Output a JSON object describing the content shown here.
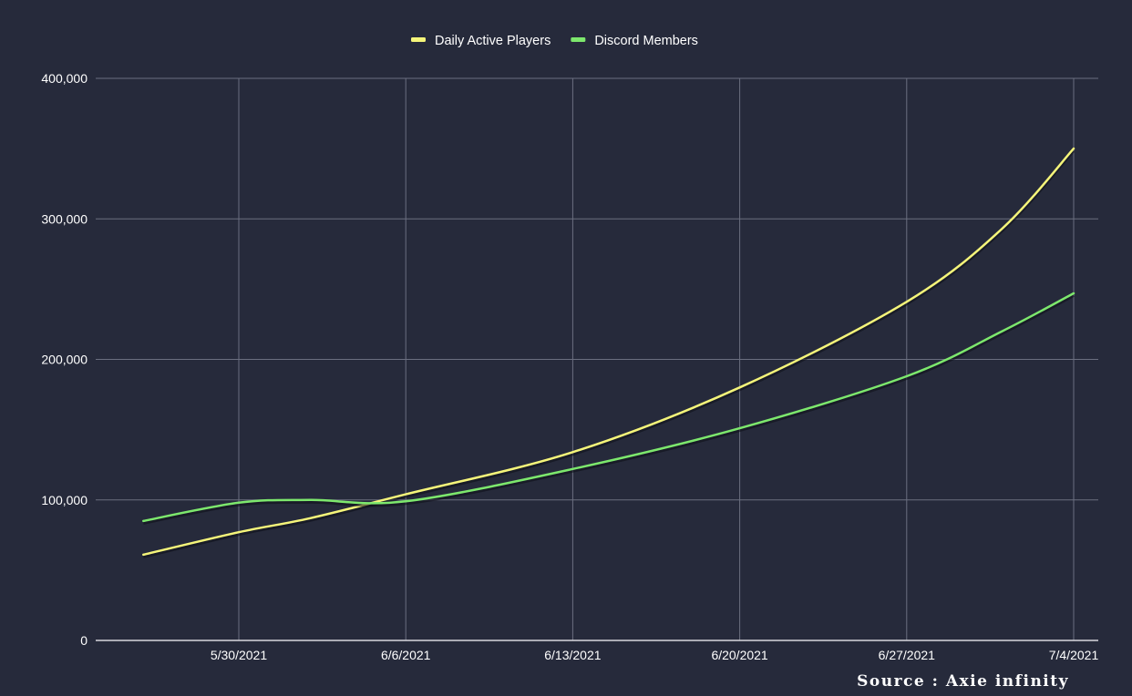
{
  "chart_data": {
    "type": "line",
    "title": "",
    "xlabel": "",
    "ylabel": "",
    "x": [
      "5/26/2021",
      "5/30/2021",
      "6/2/2021",
      "6/6/2021",
      "6/13/2021",
      "6/20/2021",
      "6/27/2021",
      "7/1/2021",
      "7/4/2021"
    ],
    "x_tick_labels": [
      "5/30/2021",
      "6/6/2021",
      "6/13/2021",
      "6/20/2021",
      "6/27/2021",
      "7/4/2021"
    ],
    "y_tick_labels": [
      "0",
      "100,000",
      "200,000",
      "300,000",
      "400,000"
    ],
    "ylim": [
      0,
      400000
    ],
    "grid": true,
    "legend_position": "top-center",
    "series": [
      {
        "name": "Daily Active Players",
        "color": "#f5f57a",
        "values": [
          61000,
          77000,
          87000,
          104000,
          134000,
          180000,
          241000,
          293000,
          350000
        ]
      },
      {
        "name": "Discord Members",
        "color": "#7de86d",
        "values": [
          85000,
          98000,
          100000,
          99000,
          122000,
          151000,
          188000,
          220000,
          247000
        ]
      }
    ],
    "source": "Source : Axie infinity"
  },
  "colors": {
    "background": "#262a3b",
    "grid": "#6b6f80",
    "text": "#ffffff"
  }
}
